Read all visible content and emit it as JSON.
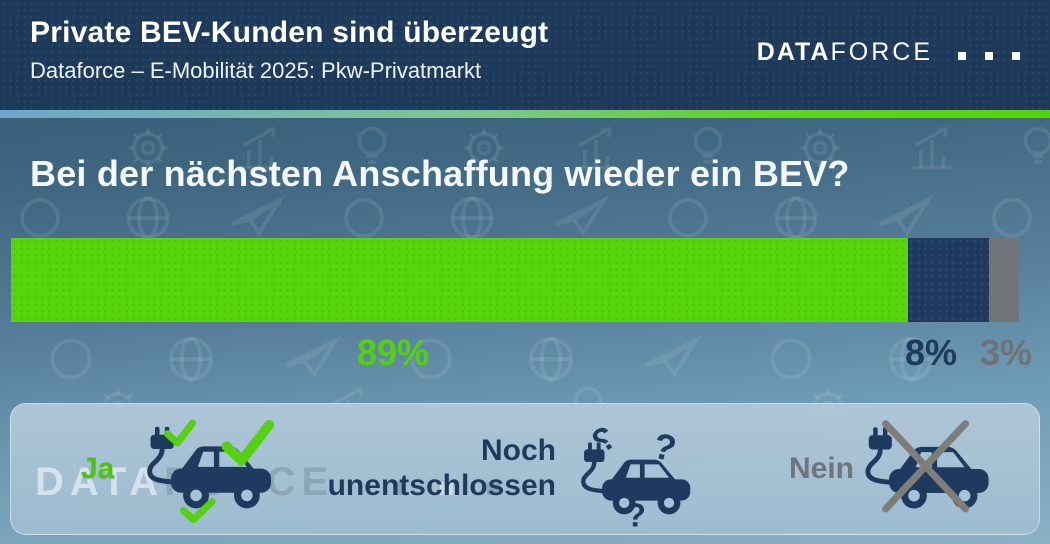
{
  "header": {
    "title": "Private BEV-Kunden sind überzeugt",
    "subtitle": "Dataforce – E-Mobilität 2025: Pkw-Privatmarkt",
    "logo": {
      "bold": "DATA",
      "light": "FORCE"
    }
  },
  "question": "Bei der nächsten Anschaffung wieder ein BEV?",
  "chart_data": {
    "type": "bar",
    "orientation": "horizontal_stacked",
    "title": "Bei der nächsten Anschaffung wieder ein BEV?",
    "categories": [
      "Ja",
      "Noch unentschlossen",
      "Nein"
    ],
    "values": [
      89,
      8,
      3
    ],
    "unit": "%",
    "labels": [
      "89%",
      "8%",
      "3%"
    ],
    "segment_colors": [
      "#58d40c",
      "#1e3a5e",
      "#70757a"
    ],
    "label_colors": [
      "#55d00e",
      "#1e3a5e",
      "#6e7377"
    ],
    "xlim": [
      0,
      100
    ],
    "grid": false,
    "legend_position": "bottom"
  },
  "legend": {
    "items": [
      {
        "label": "Ja",
        "icon": "electric-car-checkmarks-icon",
        "color": "#4cc40e"
      },
      {
        "label": "Noch unentschlossen",
        "icon": "electric-car-questionmarks-icon",
        "color": "#1e3a5e"
      },
      {
        "label": "Nein",
        "icon": "electric-car-crossed-icon",
        "color": "#70757a"
      }
    ]
  },
  "watermark": {
    "bold": "DATA",
    "light": "FORCE"
  },
  "theme": {
    "header_bg": "#1e3a5a",
    "accent_blue": "#6fa6ca",
    "accent_green": "#55d30a",
    "bg_top": "#30556f",
    "bg_bottom": "#8ab1c6",
    "green": "#58d40c",
    "navy": "#1e3a5e",
    "gray": "#70757a",
    "band": "#a6c2d6",
    "check_green": "#55d013",
    "cross_gray": "#7d7e79",
    "text_light": "#f4f8fb"
  }
}
